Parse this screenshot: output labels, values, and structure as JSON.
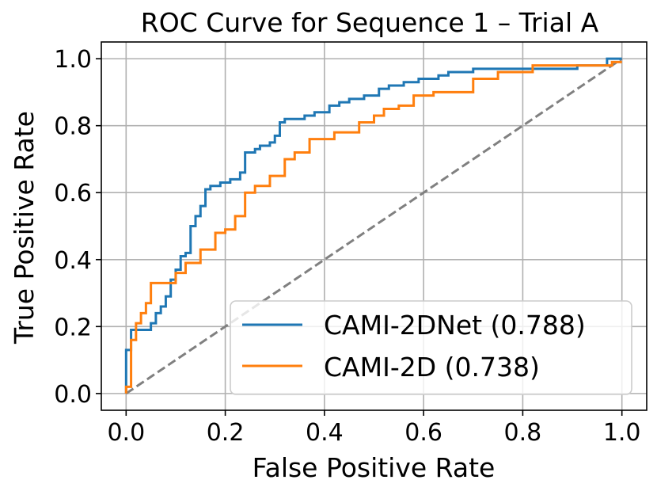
{
  "chart_data": {
    "type": "line",
    "title": "ROC Curve for Sequence 1 – Trial A",
    "xlabel": "False Positive Rate",
    "ylabel": "True Positive Rate",
    "xlim": [
      -0.05,
      1.05
    ],
    "ylim": [
      -0.05,
      1.05
    ],
    "xticks": [
      0.0,
      0.2,
      0.4,
      0.6,
      0.8,
      1.0
    ],
    "xtick_labels": [
      "0.0",
      "0.2",
      "0.4",
      "0.6",
      "0.8",
      "1.0"
    ],
    "yticks": [
      0.0,
      0.2,
      0.4,
      0.6,
      0.8,
      1.0
    ],
    "ytick_labels": [
      "0.0",
      "0.2",
      "0.4",
      "0.6",
      "0.8",
      "1.0"
    ],
    "grid": true,
    "legend_position": "lower-right",
    "series": [
      {
        "name": "CAMI-2DNet",
        "legend_label": "CAMI-2DNet (0.788)",
        "color": "#1f77b4",
        "x": [
          0.0,
          0.0,
          0.01,
          0.01,
          0.05,
          0.05,
          0.06,
          0.06,
          0.07,
          0.07,
          0.08,
          0.08,
          0.09,
          0.09,
          0.1,
          0.1,
          0.11,
          0.11,
          0.12,
          0.12,
          0.13,
          0.13,
          0.14,
          0.14,
          0.15,
          0.15,
          0.16,
          0.16,
          0.17,
          0.17,
          0.19,
          0.19,
          0.21,
          0.21,
          0.23,
          0.23,
          0.24,
          0.24,
          0.26,
          0.26,
          0.27,
          0.27,
          0.29,
          0.29,
          0.3,
          0.3,
          0.31,
          0.31,
          0.32,
          0.32,
          0.36,
          0.36,
          0.38,
          0.38,
          0.41,
          0.41,
          0.43,
          0.43,
          0.45,
          0.45,
          0.48,
          0.48,
          0.51,
          0.51,
          0.53,
          0.53,
          0.56,
          0.56,
          0.59,
          0.59,
          0.63,
          0.63,
          0.65,
          0.65,
          0.7,
          0.7,
          0.91,
          0.91,
          0.97,
          0.97,
          1.0
        ],
        "y": [
          0.0,
          0.13,
          0.13,
          0.19,
          0.19,
          0.21,
          0.21,
          0.24,
          0.24,
          0.26,
          0.26,
          0.29,
          0.29,
          0.34,
          0.34,
          0.37,
          0.37,
          0.41,
          0.41,
          0.42,
          0.42,
          0.5,
          0.5,
          0.53,
          0.53,
          0.56,
          0.56,
          0.61,
          0.61,
          0.62,
          0.62,
          0.63,
          0.63,
          0.64,
          0.64,
          0.66,
          0.66,
          0.72,
          0.72,
          0.73,
          0.73,
          0.74,
          0.74,
          0.75,
          0.75,
          0.77,
          0.77,
          0.81,
          0.81,
          0.82,
          0.82,
          0.83,
          0.83,
          0.84,
          0.84,
          0.86,
          0.86,
          0.87,
          0.87,
          0.88,
          0.88,
          0.89,
          0.89,
          0.91,
          0.91,
          0.92,
          0.92,
          0.93,
          0.93,
          0.94,
          0.94,
          0.95,
          0.95,
          0.96,
          0.96,
          0.97,
          0.97,
          0.98,
          0.98,
          1.0,
          1.0
        ]
      },
      {
        "name": "CAMI-2D",
        "legend_label": "CAMI-2D (0.738)",
        "color": "#ff7f0e",
        "x": [
          0.0,
          0.0,
          0.01,
          0.01,
          0.02,
          0.02,
          0.03,
          0.03,
          0.04,
          0.04,
          0.05,
          0.05,
          0.1,
          0.1,
          0.12,
          0.12,
          0.15,
          0.15,
          0.18,
          0.18,
          0.2,
          0.2,
          0.22,
          0.22,
          0.24,
          0.24,
          0.26,
          0.26,
          0.29,
          0.29,
          0.32,
          0.32,
          0.34,
          0.34,
          0.37,
          0.37,
          0.42,
          0.42,
          0.47,
          0.47,
          0.5,
          0.5,
          0.52,
          0.52,
          0.55,
          0.55,
          0.58,
          0.58,
          0.62,
          0.62,
          0.7,
          0.7,
          0.75,
          0.75,
          0.82,
          0.82,
          0.98,
          0.98,
          1.0
        ],
        "y": [
          0.0,
          0.02,
          0.02,
          0.16,
          0.16,
          0.21,
          0.21,
          0.24,
          0.24,
          0.27,
          0.27,
          0.33,
          0.33,
          0.36,
          0.36,
          0.39,
          0.39,
          0.43,
          0.43,
          0.48,
          0.48,
          0.49,
          0.49,
          0.53,
          0.53,
          0.6,
          0.6,
          0.62,
          0.62,
          0.65,
          0.65,
          0.7,
          0.7,
          0.72,
          0.72,
          0.76,
          0.76,
          0.78,
          0.78,
          0.81,
          0.81,
          0.83,
          0.83,
          0.85,
          0.85,
          0.86,
          0.86,
          0.89,
          0.89,
          0.9,
          0.9,
          0.94,
          0.94,
          0.96,
          0.96,
          0.98,
          0.98,
          0.99,
          0.99
        ]
      },
      {
        "name": "Chance",
        "legend_label": "",
        "color": "#808080",
        "dashed": true,
        "x": [
          0.0,
          1.0
        ],
        "y": [
          0.0,
          1.0
        ]
      }
    ]
  }
}
